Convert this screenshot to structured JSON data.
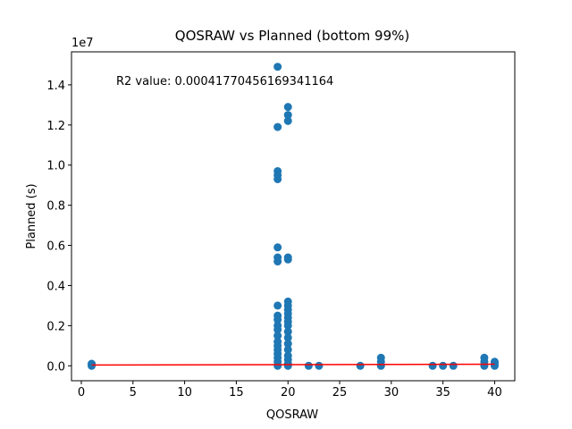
{
  "chart_data": {
    "type": "scatter",
    "title": "QOSRAW vs Planned (bottom 99%)",
    "x_label": "QOSRAW",
    "y_label": "Planned (s)",
    "y_offset_label": "1e7",
    "annotation": "R2 value: 0.00041770456169341164",
    "color": "#1f77b4",
    "x": [
      1,
      1,
      1,
      19,
      19,
      19,
      19,
      19,
      19,
      19,
      19,
      19,
      19,
      19,
      19,
      19,
      19,
      19,
      19,
      19,
      19,
      19,
      19,
      19,
      20,
      20,
      20,
      20,
      20,
      20,
      20,
      20,
      20,
      20,
      20,
      20,
      20,
      20,
      20,
      20,
      20,
      20,
      20,
      20,
      22,
      23,
      27,
      29,
      29,
      29,
      34,
      35,
      36,
      39,
      39,
      39,
      40,
      40,
      40
    ],
    "values": [
      0,
      50000,
      100000,
      14900000,
      11900000,
      9700000,
      9500000,
      9300000,
      5900000,
      5400000,
      5200000,
      3000000,
      2500000,
      2300000,
      2000000,
      1800000,
      1500000,
      1200000,
      1000000,
      800000,
      600000,
      400000,
      200000,
      0,
      12900000,
      12500000,
      12200000,
      5400000,
      5300000,
      3200000,
      3000000,
      2800000,
      2600000,
      2400000,
      2200000,
      2000000,
      1700000,
      1400000,
      1100000,
      800000,
      500000,
      300000,
      100000,
      0,
      0,
      0,
      0,
      0,
      200000,
      400000,
      0,
      0,
      0,
      0,
      200000,
      400000,
      0,
      100000,
      200000
    ],
    "fit_line": {
      "color": "#ff0000",
      "x": [
        1,
        40
      ],
      "values": [
        40000,
        80000
      ]
    },
    "xlim": [
      -0.95,
      41.95
    ],
    "ylim": [
      -745000,
      15645000
    ],
    "xticks": [
      0,
      5,
      10,
      15,
      20,
      25,
      30,
      35,
      40
    ],
    "yticks": [
      {
        "value": 0,
        "label": "0.0"
      },
      {
        "value": 2000000,
        "label": "0.2"
      },
      {
        "value": 4000000,
        "label": "0.4"
      },
      {
        "value": 6000000,
        "label": "0.6"
      },
      {
        "value": 8000000,
        "label": "0.8"
      },
      {
        "value": 10000000,
        "label": "1.0"
      },
      {
        "value": 12000000,
        "label": "1.2"
      },
      {
        "value": 14000000,
        "label": "1.4"
      }
    ]
  }
}
